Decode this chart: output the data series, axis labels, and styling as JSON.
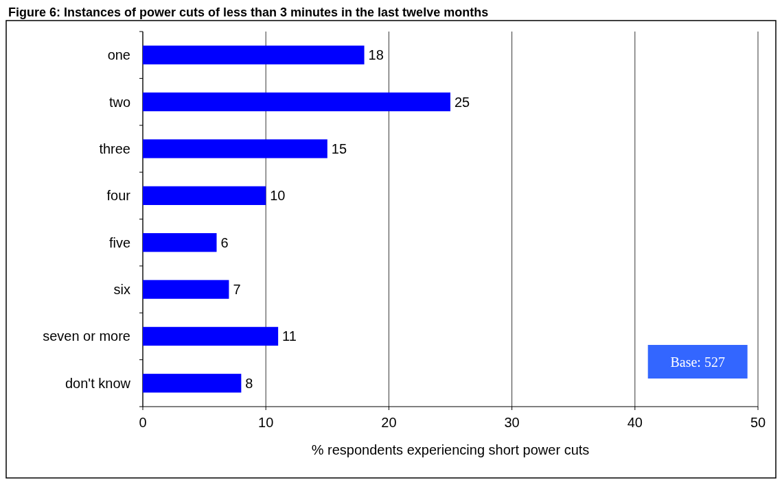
{
  "chart_data": {
    "type": "bar",
    "orientation": "horizontal",
    "title": "Figure 6: Instances of power cuts of less than 3 minutes in the last twelve months",
    "categories": [
      "one",
      "two",
      "three",
      "four",
      "five",
      "six",
      "seven or more",
      "don't know"
    ],
    "values": [
      18,
      25,
      15,
      10,
      6,
      7,
      11,
      8
    ],
    "color": "#0000ff",
    "xlim": [
      0,
      50
    ],
    "xticks": [
      0,
      10,
      20,
      30,
      40,
      50
    ],
    "grid": "x",
    "data_labels": true,
    "xlabel": "% respondents experiencing short power cuts",
    "annotations": [
      "Base: 527"
    ]
  }
}
